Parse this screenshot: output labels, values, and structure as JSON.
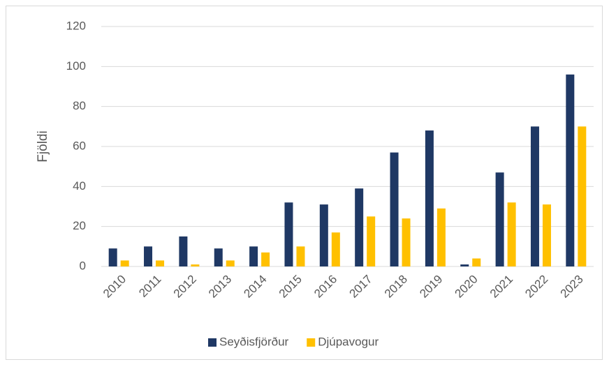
{
  "chart_data": {
    "type": "bar",
    "ylabel": "Fjöldi",
    "categories": [
      "2010",
      "2011",
      "2012",
      "2013",
      "2014",
      "2015",
      "2016",
      "2017",
      "2018",
      "2019",
      "2020",
      "2021",
      "2022",
      "2023"
    ],
    "series": [
      {
        "name": "Seyðisfjörður",
        "color": "#1f3864",
        "values": [
          9,
          10,
          15,
          9,
          10,
          32,
          31,
          39,
          57,
          68,
          1,
          47,
          70,
          96
        ]
      },
      {
        "name": "Djúpavogur",
        "color": "#ffc000",
        "values": [
          3,
          3,
          1,
          3,
          7,
          10,
          17,
          25,
          24,
          29,
          4,
          32,
          31,
          70
        ]
      }
    ],
    "ylim": [
      0,
      120
    ],
    "yticks": [
      0,
      20,
      40,
      60,
      80,
      100,
      120
    ],
    "grid": true,
    "legend": "bottom"
  }
}
